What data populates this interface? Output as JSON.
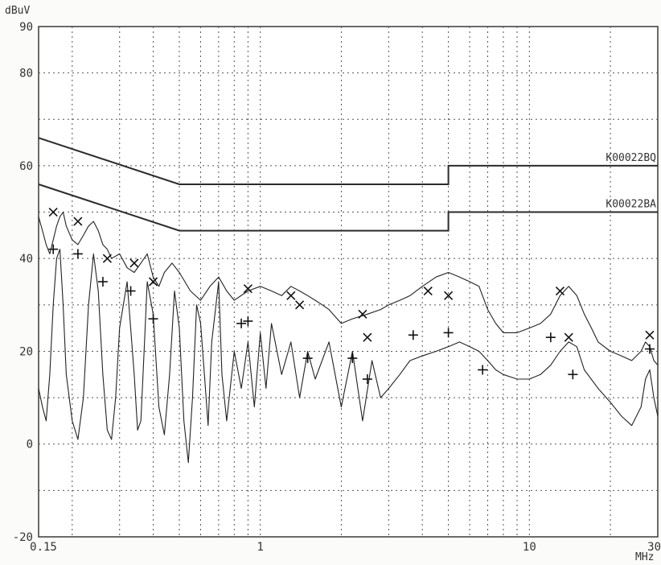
{
  "chart_data": {
    "type": "line",
    "title": "",
    "ylabel": "dBuV",
    "xlabel": "MHz",
    "x_scale": "log",
    "xlim": [
      0.15,
      30
    ],
    "ylim": [
      -20,
      90
    ],
    "grid": true,
    "y_ticks": [
      90,
      80,
      60,
      40,
      20,
      0,
      -20
    ],
    "x_tick_labels": [
      {
        "value": 0.15,
        "label": "0.15"
      },
      {
        "value": 1,
        "label": "1"
      },
      {
        "value": 10,
        "label": "10"
      },
      {
        "value": 30,
        "label": "30"
      }
    ],
    "limit_lines": [
      {
        "name": "K00022BQ",
        "points": [
          [
            0.15,
            66
          ],
          [
            0.5,
            56
          ],
          [
            5,
            56
          ],
          [
            5,
            60
          ],
          [
            30,
            60
          ]
        ]
      },
      {
        "name": "K00022BA",
        "points": [
          [
            0.15,
            56
          ],
          [
            0.5,
            46
          ],
          [
            5,
            46
          ],
          [
            5,
            50
          ],
          [
            30,
            50
          ]
        ]
      }
    ],
    "series": [
      {
        "values": [
          [
            0.15,
            49
          ],
          [
            0.155,
            46
          ],
          [
            0.16,
            43
          ],
          [
            0.165,
            41
          ],
          [
            0.17,
            44
          ],
          [
            0.175,
            47
          ],
          [
            0.18,
            49
          ],
          [
            0.185,
            50
          ],
          [
            0.19,
            47
          ],
          [
            0.2,
            44
          ],
          [
            0.21,
            43
          ],
          [
            0.22,
            45
          ],
          [
            0.23,
            47
          ],
          [
            0.24,
            48
          ],
          [
            0.25,
            46
          ],
          [
            0.26,
            43
          ],
          [
            0.27,
            42
          ],
          [
            0.28,
            40
          ],
          [
            0.3,
            41
          ],
          [
            0.32,
            38
          ],
          [
            0.34,
            37
          ],
          [
            0.36,
            39
          ],
          [
            0.38,
            41
          ],
          [
            0.4,
            36
          ],
          [
            0.42,
            34
          ],
          [
            0.44,
            37
          ],
          [
            0.47,
            39
          ],
          [
            0.5,
            37
          ],
          [
            0.55,
            33
          ],
          [
            0.6,
            31
          ],
          [
            0.65,
            34
          ],
          [
            0.7,
            36
          ],
          [
            0.75,
            33
          ],
          [
            0.8,
            31
          ],
          [
            0.9,
            33
          ],
          [
            1.0,
            34
          ],
          [
            1.1,
            33
          ],
          [
            1.2,
            32
          ],
          [
            1.3,
            34
          ],
          [
            1.4,
            33
          ],
          [
            1.5,
            32
          ],
          [
            1.6,
            31
          ],
          [
            1.7,
            30
          ],
          [
            1.8,
            29
          ],
          [
            2.0,
            26
          ],
          [
            2.2,
            27
          ],
          [
            2.5,
            28
          ],
          [
            2.8,
            29
          ],
          [
            3.0,
            30
          ],
          [
            3.3,
            31
          ],
          [
            3.6,
            32
          ],
          [
            4.0,
            34
          ],
          [
            4.5,
            36
          ],
          [
            5.0,
            37
          ],
          [
            5.5,
            36
          ],
          [
            6.0,
            35
          ],
          [
            6.5,
            34
          ],
          [
            7.0,
            29
          ],
          [
            7.5,
            26
          ],
          [
            8.0,
            24
          ],
          [
            9.0,
            24
          ],
          [
            10,
            25
          ],
          [
            11,
            26
          ],
          [
            12,
            28
          ],
          [
            13,
            32
          ],
          [
            14,
            34
          ],
          [
            15,
            32
          ],
          [
            16,
            28
          ],
          [
            17,
            25
          ],
          [
            18,
            22
          ],
          [
            20,
            20
          ],
          [
            22,
            19
          ],
          [
            24,
            18
          ],
          [
            26,
            20
          ],
          [
            27,
            22
          ],
          [
            28,
            21
          ],
          [
            29,
            18
          ],
          [
            30,
            17
          ]
        ]
      },
      {
        "values": [
          [
            0.15,
            12
          ],
          [
            0.155,
            8
          ],
          [
            0.16,
            5
          ],
          [
            0.165,
            15
          ],
          [
            0.17,
            30
          ],
          [
            0.175,
            40
          ],
          [
            0.18,
            42
          ],
          [
            0.185,
            30
          ],
          [
            0.19,
            15
          ],
          [
            0.2,
            5
          ],
          [
            0.21,
            1
          ],
          [
            0.22,
            10
          ],
          [
            0.23,
            30
          ],
          [
            0.24,
            41
          ],
          [
            0.25,
            33
          ],
          [
            0.26,
            15
          ],
          [
            0.27,
            3
          ],
          [
            0.28,
            1
          ],
          [
            0.29,
            10
          ],
          [
            0.3,
            25
          ],
          [
            0.32,
            35
          ],
          [
            0.34,
            15
          ],
          [
            0.35,
            3
          ],
          [
            0.36,
            5
          ],
          [
            0.37,
            20
          ],
          [
            0.38,
            35
          ],
          [
            0.4,
            28
          ],
          [
            0.42,
            8
          ],
          [
            0.44,
            2
          ],
          [
            0.46,
            15
          ],
          [
            0.48,
            33
          ],
          [
            0.5,
            25
          ],
          [
            0.52,
            5
          ],
          [
            0.54,
            -4
          ],
          [
            0.56,
            10
          ],
          [
            0.58,
            30
          ],
          [
            0.6,
            26
          ],
          [
            0.62,
            15
          ],
          [
            0.64,
            4
          ],
          [
            0.66,
            22
          ],
          [
            0.7,
            35
          ],
          [
            0.72,
            15
          ],
          [
            0.75,
            5
          ],
          [
            0.8,
            20
          ],
          [
            0.85,
            12
          ],
          [
            0.9,
            22
          ],
          [
            0.95,
            8
          ],
          [
            1.0,
            24
          ],
          [
            1.05,
            12
          ],
          [
            1.1,
            26
          ],
          [
            1.2,
            15
          ],
          [
            1.3,
            22
          ],
          [
            1.4,
            10
          ],
          [
            1.5,
            20
          ],
          [
            1.6,
            14
          ],
          [
            1.8,
            22
          ],
          [
            2.0,
            8
          ],
          [
            2.2,
            20
          ],
          [
            2.4,
            5
          ],
          [
            2.6,
            18
          ],
          [
            2.8,
            10
          ],
          [
            3.0,
            12
          ],
          [
            3.3,
            15
          ],
          [
            3.6,
            18
          ],
          [
            4.0,
            19
          ],
          [
            4.5,
            20
          ],
          [
            5.0,
            21
          ],
          [
            5.5,
            22
          ],
          [
            6.0,
            21
          ],
          [
            6.5,
            20
          ],
          [
            7.0,
            18
          ],
          [
            7.5,
            16
          ],
          [
            8.0,
            15
          ],
          [
            9.0,
            14
          ],
          [
            10,
            14
          ],
          [
            11,
            15
          ],
          [
            12,
            17
          ],
          [
            13,
            20
          ],
          [
            14,
            22
          ],
          [
            15,
            21
          ],
          [
            16,
            16
          ],
          [
            18,
            12
          ],
          [
            20,
            9
          ],
          [
            22,
            6
          ],
          [
            24,
            4
          ],
          [
            26,
            8
          ],
          [
            27,
            14
          ],
          [
            28,
            16
          ],
          [
            29,
            10
          ],
          [
            30,
            6
          ]
        ]
      }
    ],
    "markers": [
      {
        "symbol": "x",
        "points": [
          [
            0.17,
            50
          ],
          [
            0.21,
            48
          ],
          [
            0.27,
            40
          ],
          [
            0.34,
            39
          ],
          [
            0.4,
            35
          ],
          [
            0.9,
            33.5
          ],
          [
            1.3,
            32
          ],
          [
            1.4,
            30
          ],
          [
            2.4,
            28
          ],
          [
            2.5,
            23
          ],
          [
            4.2,
            33
          ],
          [
            5.0,
            32
          ],
          [
            13,
            33
          ],
          [
            14,
            23
          ],
          [
            28,
            23.5
          ]
        ]
      },
      {
        "symbol": "+",
        "points": [
          [
            0.17,
            42
          ],
          [
            0.21,
            41
          ],
          [
            0.26,
            35
          ],
          [
            0.33,
            33
          ],
          [
            0.4,
            27
          ],
          [
            0.85,
            26
          ],
          [
            0.9,
            26.5
          ],
          [
            1.5,
            18.5
          ],
          [
            2.2,
            18.5
          ],
          [
            2.5,
            14
          ],
          [
            3.7,
            23.5
          ],
          [
            5.0,
            24
          ],
          [
            6.7,
            16
          ],
          [
            12,
            23
          ],
          [
            14.5,
            15
          ],
          [
            28,
            20.5
          ]
        ]
      }
    ]
  }
}
